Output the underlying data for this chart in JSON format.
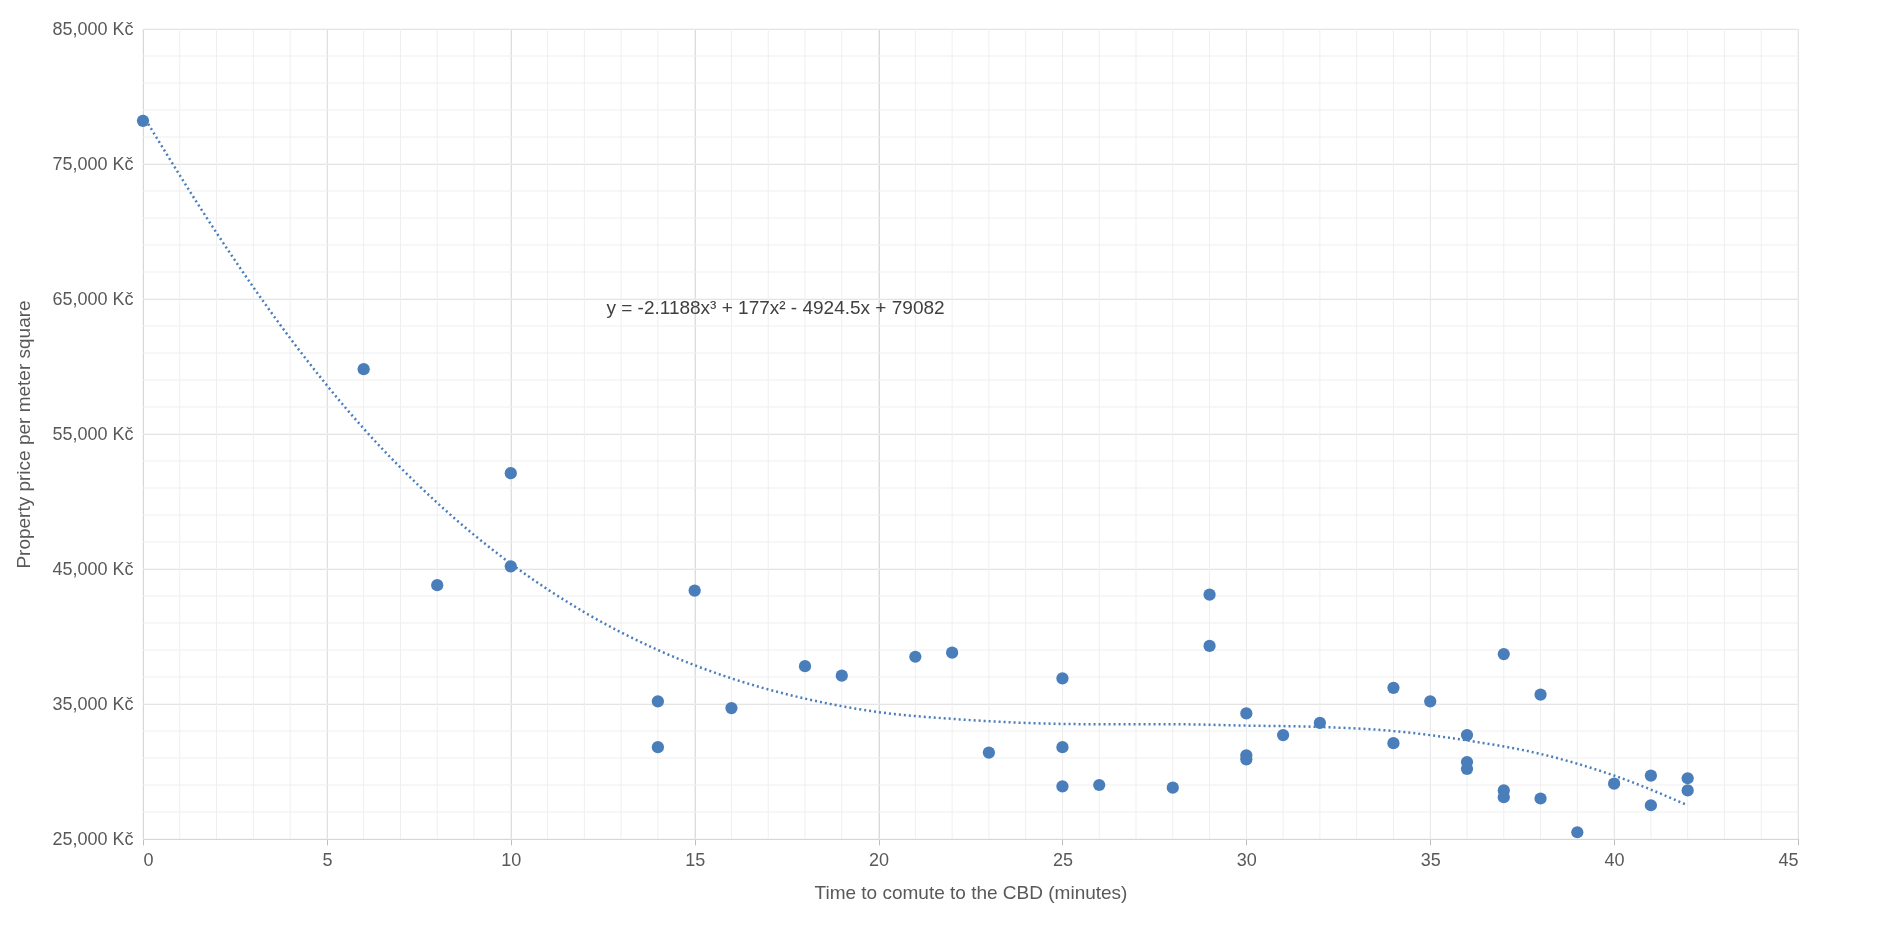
{
  "chart_data": {
    "type": "scatter",
    "xlabel": "Time to comute to the CBD (minutes)",
    "ylabel": "Property price per meter square",
    "annotations": [
      "y = -2.1188x³ + 177x² - 4924.5x + 79082"
    ],
    "xlim": [
      0,
      45
    ],
    "xticks": [
      0,
      5,
      10,
      15,
      20,
      25,
      30,
      35,
      40,
      45
    ],
    "ylim": [
      25000,
      85000
    ],
    "yticks": [
      {
        "value": 25000,
        "label": "25,000 Kč"
      },
      {
        "value": 35000,
        "label": "35,000 Kč"
      },
      {
        "value": 45000,
        "label": "45,000 Kč"
      },
      {
        "value": 55000,
        "label": "55,000 Kč"
      },
      {
        "value": 65000,
        "label": "65,000 Kč"
      },
      {
        "value": 75000,
        "label": "75,000 Kč"
      },
      {
        "value": 85000,
        "label": "85,000 Kč"
      }
    ],
    "grid": true,
    "series": [
      {
        "color": "#4a7ebb",
        "marker": "circle",
        "x": [
          0,
          6,
          8,
          10,
          10,
          14,
          14,
          15,
          16,
          18,
          19,
          21,
          22,
          23,
          25,
          25,
          25,
          26,
          28,
          29,
          29,
          30,
          30,
          30,
          31,
          32,
          34,
          34,
          35,
          36,
          36,
          36,
          37,
          37,
          37,
          38,
          38,
          39,
          40,
          41,
          41,
          42,
          42
        ],
        "values": [
          78200,
          59800,
          43800,
          52100,
          45200,
          35200,
          31800,
          43400,
          34700,
          37800,
          37100,
          38500,
          38800,
          31400,
          36900,
          31800,
          28900,
          29000,
          28800,
          43100,
          39300,
          34300,
          31200,
          30900,
          32700,
          33600,
          36200,
          32100,
          35200,
          32700,
          30700,
          30200,
          38700,
          28600,
          28100,
          35700,
          28000,
          25500,
          29100,
          29700,
          27500,
          29500,
          28600
        ]
      },
      {
        "type": "line",
        "color": "#4a7ebb",
        "line_style": "dotted",
        "marker": "none",
        "x": [
          0,
          2,
          4,
          6,
          8,
          10,
          12,
          14,
          16,
          18,
          20,
          22,
          24,
          26,
          28,
          30,
          32,
          34,
          36,
          38,
          40,
          42
        ],
        "values": [
          78600,
          69900,
          62100,
          55400,
          49900,
          45400,
          41800,
          39000,
          36900,
          35400,
          34400,
          33900,
          33600,
          33500,
          33500,
          33400,
          33300,
          33000,
          32300,
          31300,
          29700,
          27500
        ]
      }
    ]
  }
}
